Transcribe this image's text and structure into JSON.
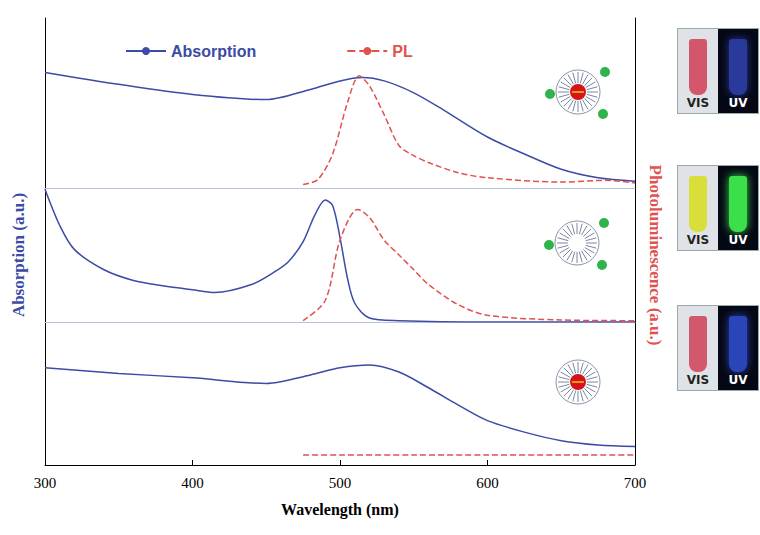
{
  "chart_data": {
    "type": "line",
    "xlabel": "Wavelength (nm)",
    "ylabel": "Absorption (a.u.)",
    "y2label": "Photoluminescence (a.u.)",
    "xlim": [
      300,
      700
    ],
    "xticks": [
      300,
      400,
      500,
      600,
      700
    ],
    "legend": "top",
    "tick_labels": "x",
    "grid": false,
    "panels": [
      {
        "ylim": [
          0,
          1
        ],
        "y2lim": [
          0,
          1
        ],
        "labels": [
          "VIS",
          "UV"
        ],
        "series": [
          {
            "name": "Absorption",
            "color": "#3b4ba6",
            "line_style": "solid",
            "axis": "y",
            "x": [
              300,
              350,
              400,
              450,
              480,
              500,
              515,
              530,
              550,
              570,
              600,
              625,
              650,
              675,
              700
            ],
            "values": [
              0.68,
              0.61,
              0.55,
              0.52,
              0.58,
              0.63,
              0.65,
              0.63,
              0.56,
              0.46,
              0.3,
              0.2,
              0.11,
              0.06,
              0.04
            ]
          },
          {
            "name": "PL",
            "color": "#e0524f",
            "line_style": "dashed",
            "axis": "y2",
            "x": [
              475,
              485,
              495,
              505,
              513,
              520,
              530,
              540,
              550,
              560,
              580,
              600,
              650,
              680,
              700
            ],
            "values": [
              0.02,
              0.05,
              0.2,
              0.5,
              0.66,
              0.6,
              0.43,
              0.25,
              0.19,
              0.15,
              0.09,
              0.06,
              0.035,
              0.045,
              0.03
            ]
          }
        ]
      },
      {
        "ylim": [
          0,
          1
        ],
        "y2lim": [
          0,
          1
        ],
        "labels": [
          "VIS",
          "UV"
        ],
        "series": [
          {
            "name": "Absorption",
            "color": "#3b4ba6",
            "line_style": "solid",
            "axis": "y",
            "x": [
              300,
              310,
              320,
              340,
              360,
              380,
              400,
              415,
              440,
              455,
              465,
              475,
              483,
              490,
              495,
              500,
              505,
              510,
              520,
              540,
              600,
              700
            ],
            "values": [
              0.99,
              0.72,
              0.54,
              0.39,
              0.31,
              0.27,
              0.24,
              0.22,
              0.28,
              0.37,
              0.45,
              0.6,
              0.8,
              0.91,
              0.87,
              0.63,
              0.33,
              0.14,
              0.03,
              0.01,
              0,
              0
            ]
          },
          {
            "name": "PL",
            "color": "#e0524f",
            "line_style": "dashed",
            "axis": "y2",
            "x": [
              475,
              490,
              500,
              512,
              520,
              530,
              540,
              550,
              560,
              580,
              600,
              650,
              700
            ],
            "values": [
              0.01,
              0.16,
              0.61,
              0.84,
              0.78,
              0.61,
              0.5,
              0.39,
              0.28,
              0.13,
              0.05,
              0.015,
              0.01
            ]
          }
        ]
      },
      {
        "ylim": [
          0,
          1
        ],
        "y2lim": [
          0,
          1
        ],
        "labels": [
          "VIS",
          "UV"
        ],
        "series": [
          {
            "name": "Absorption",
            "color": "#3b4ba6",
            "line_style": "solid",
            "axis": "y",
            "x": [
              300,
              350,
              400,
              450,
              480,
              500,
              520,
              540,
              560,
              580,
              600,
              625,
              650,
              675,
              700
            ],
            "values": [
              0.68,
              0.64,
              0.61,
              0.57,
              0.63,
              0.68,
              0.7,
              0.65,
              0.54,
              0.42,
              0.31,
              0.23,
              0.17,
              0.14,
              0.13
            ]
          },
          {
            "name": "PL",
            "color": "#e0524f",
            "line_style": "dashed",
            "axis": "y2",
            "x": [
              475,
              500,
              550,
              600,
              650,
              700
            ],
            "values": [
              0.07,
              0.07,
              0.07,
              0.07,
              0.07,
              0.07
            ]
          }
        ]
      }
    ]
  }
}
